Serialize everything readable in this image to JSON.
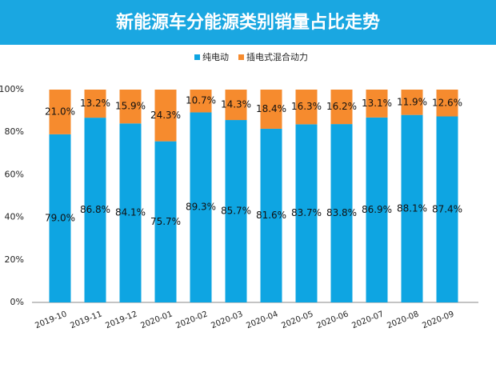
{
  "chart_data": {
    "type": "stacked_bar",
    "title": "新能源车分能源类别销量占比走势",
    "categories": [
      "2019-10",
      "2019-11",
      "2019-12",
      "2020-01",
      "2020-02",
      "2020-03",
      "2020-04",
      "2020-05",
      "2020-06",
      "2020-07",
      "2020-08",
      "2020-09"
    ],
    "series": [
      {
        "name": "纯电动",
        "color": "#0ea5e2",
        "values": [
          79.0,
          86.8,
          84.1,
          75.7,
          89.3,
          85.7,
          81.6,
          83.7,
          83.8,
          86.9,
          88.1,
          87.4
        ],
        "value_labels": [
          "79.0%",
          "86.8%",
          "84.1%",
          "75.7%",
          "89.3%",
          "85.7%",
          "81.6%",
          "83.7%",
          "83.8%",
          "86.9%",
          "88.1%",
          "87.4%"
        ]
      },
      {
        "name": "插电式混合动力",
        "color": "#f68b2e",
        "values": [
          21.0,
          13.2,
          15.9,
          24.3,
          10.7,
          14.3,
          18.4,
          16.3,
          16.2,
          13.1,
          11.9,
          12.6
        ],
        "value_labels": [
          "21.0%",
          "13.2%",
          "15.9%",
          "24.3%",
          "10.7%",
          "14.3%",
          "18.4%",
          "16.3%",
          "16.2%",
          "13.1%",
          "11.9%",
          "12.6%"
        ]
      }
    ],
    "ylim": [
      0,
      100
    ],
    "yticks": [
      {
        "value": 0,
        "label": "0%"
      },
      {
        "value": 20,
        "label": "20%"
      },
      {
        "value": 40,
        "label": "40%"
      },
      {
        "value": 60,
        "label": "60%"
      },
      {
        "value": 80,
        "label": "80%"
      },
      {
        "value": 100,
        "label": "100%"
      }
    ],
    "grid": false,
    "legend": "top"
  }
}
